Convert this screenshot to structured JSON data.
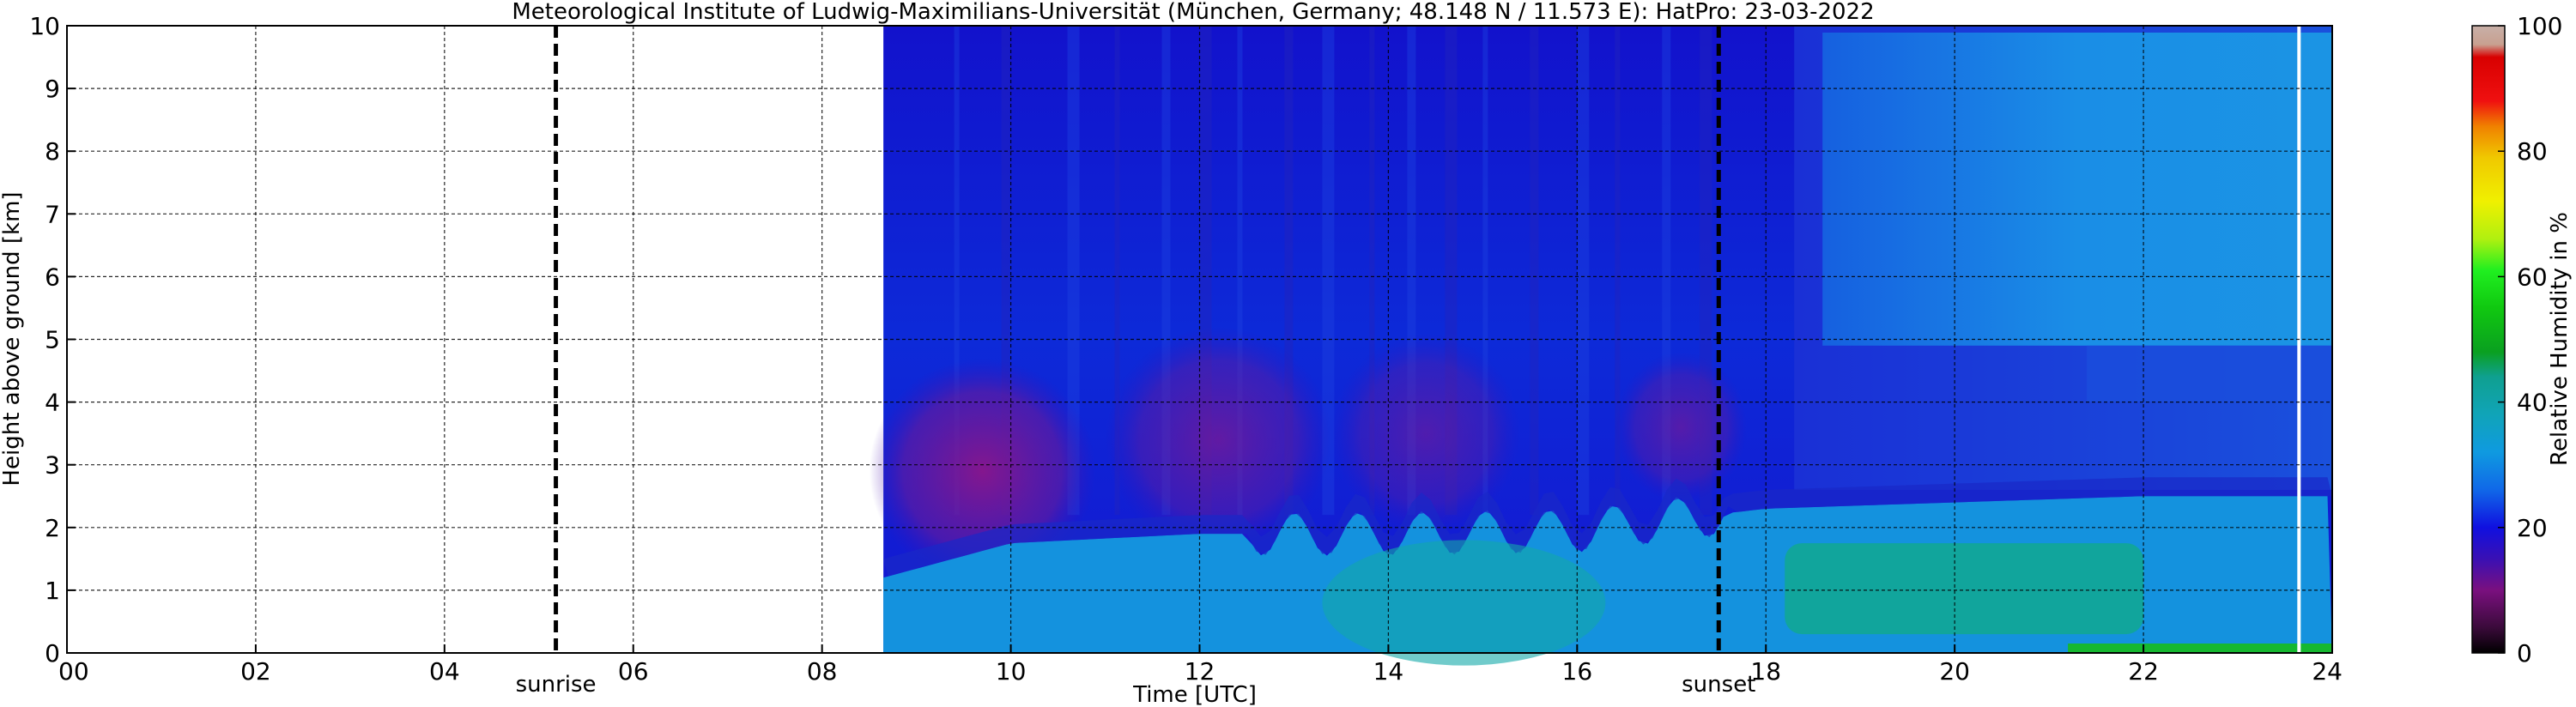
{
  "chart_data": {
    "type": "heatmap",
    "title": "Meteorological Institute of Ludwig-Maximilians-Universität (München, Germany; 48.148 N / 11.573 E):    HatPro: 23-03-2022",
    "xlabel": "Time [UTC]",
    "ylabel": "Height above ground [km]",
    "xlim": [
      0,
      24
    ],
    "ylim": [
      0,
      10
    ],
    "x_ticks": [
      0,
      2,
      4,
      6,
      8,
      10,
      12,
      14,
      16,
      18,
      20,
      22,
      24
    ],
    "x_tick_labels": [
      "00",
      "02",
      "04",
      "06",
      "08",
      "10",
      "12",
      "14",
      "16",
      "18",
      "20",
      "22",
      "24"
    ],
    "y_ticks": [
      0,
      1,
      2,
      3,
      4,
      5,
      6,
      7,
      8,
      9,
      10
    ],
    "y_tick_labels": [
      "0",
      "1",
      "2",
      "3",
      "4",
      "5",
      "6",
      "7",
      "8",
      "9",
      "10"
    ],
    "grid": true,
    "data_start_hour": 8.65,
    "data_end_hour": 24,
    "missing_gap_hour": 23.63,
    "colorbar": {
      "label": "Relative Humidity in %",
      "range": [
        0,
        100
      ],
      "ticks": [
        0,
        20,
        40,
        60,
        80,
        100
      ],
      "tick_labels": [
        "0",
        "20",
        "40",
        "60",
        "80",
        "100"
      ]
    },
    "annotations": [
      {
        "label": "sunrise",
        "hour": 5.18
      },
      {
        "label": "sunset",
        "hour": 17.5
      }
    ],
    "features": {
      "humid_layer_top_km": {
        "x": [
          8.65,
          10,
          12,
          14,
          16,
          18,
          20,
          22,
          24
        ],
        "y": [
          1.2,
          1.75,
          1.9,
          1.9,
          1.95,
          2.3,
          2.4,
          2.5,
          2.5
        ]
      },
      "dry_core_km": {
        "x": [
          8.65,
          10,
          12,
          14,
          16,
          17.5
        ],
        "y": [
          3.0,
          3.2,
          3.4,
          3.5,
          3.6,
          3.6
        ]
      }
    }
  }
}
